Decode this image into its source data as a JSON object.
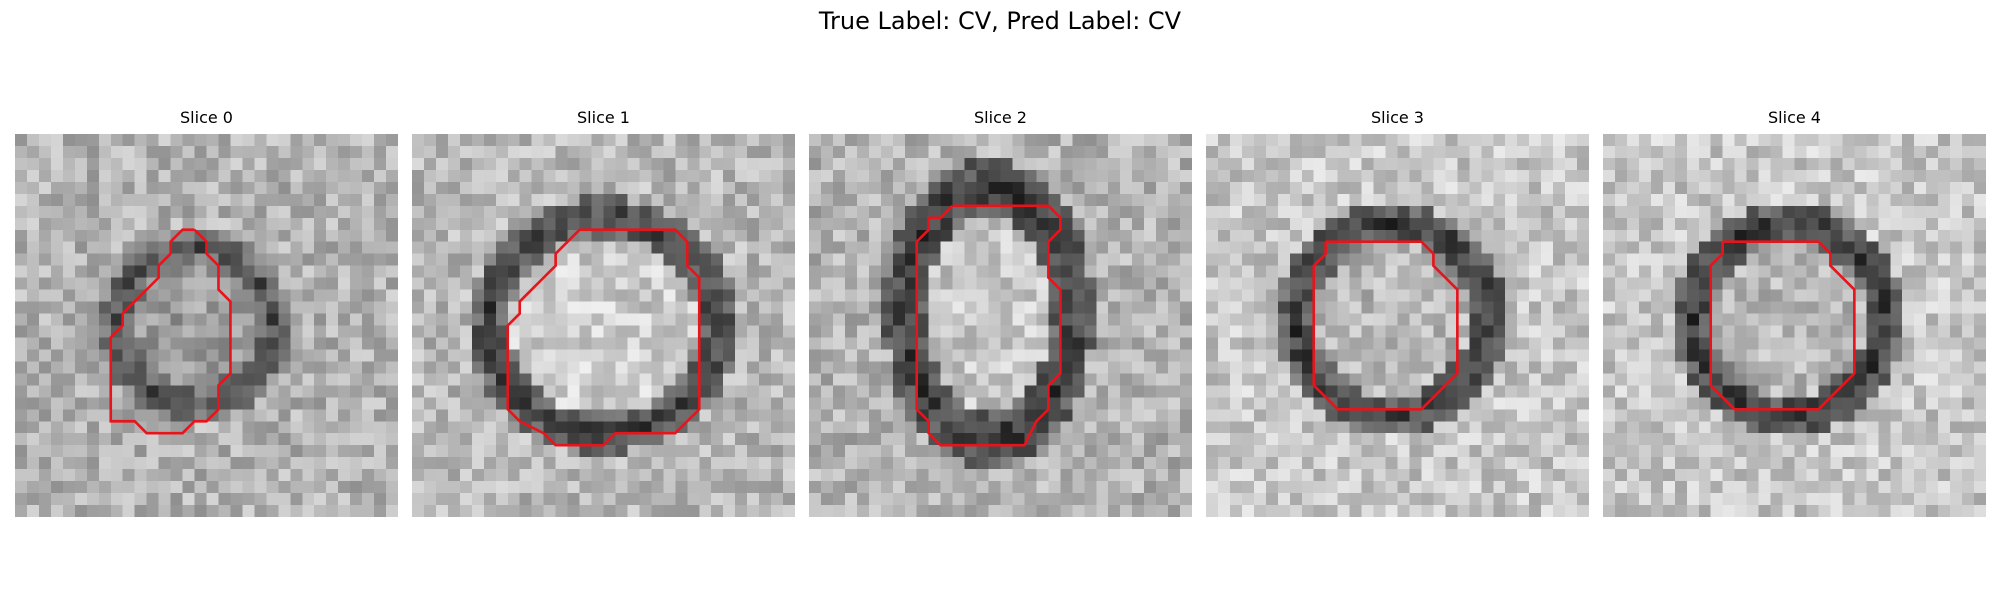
{
  "figure": {
    "title": "True Label: CV, Pred Label: CV"
  },
  "slices": [
    {
      "label": "Slice 0"
    },
    {
      "label": "Slice 1"
    },
    {
      "label": "Slice 2"
    },
    {
      "label": "Slice 3"
    },
    {
      "label": "Slice 4"
    }
  ],
  "contour_color": "#e8141b"
}
